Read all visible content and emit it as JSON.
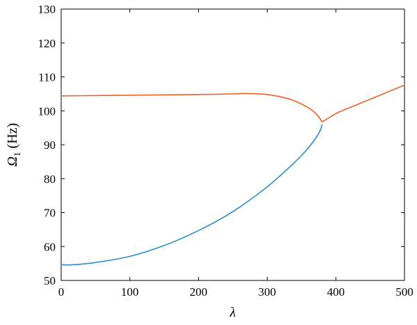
{
  "chart_data": {
    "type": "line",
    "title": "",
    "xlabel": "λ",
    "ylabel_symbol": "Ω",
    "ylabel_subscript": "1",
    "ylabel_unit": " (Hz)",
    "xlim": [
      0,
      500
    ],
    "ylim": [
      50,
      130
    ],
    "xticks": [
      0,
      100,
      200,
      300,
      400,
      500
    ],
    "yticks": [
      50,
      60,
      70,
      80,
      90,
      100,
      110,
      120,
      130
    ],
    "grid": false,
    "legend": "none",
    "series": [
      {
        "color": "#e8622a",
        "x": [
          0,
          50,
          100,
          150,
          200,
          250,
          270,
          300,
          330,
          350,
          365,
          375,
          380,
          382,
          400,
          450,
          500
        ],
        "y": [
          104.4,
          104.5,
          104.6,
          104.7,
          104.8,
          105.0,
          105.1,
          104.8,
          103.6,
          102.0,
          100.2,
          98.3,
          96.8,
          97.0,
          99.2,
          103.4,
          107.6
        ]
      },
      {
        "color": "#2a8ccf",
        "x": [
          0,
          15,
          50,
          100,
          150,
          200,
          250,
          300,
          340,
          360,
          375,
          380
        ],
        "y": [
          54.7,
          54.6,
          55.3,
          57.1,
          60.3,
          64.7,
          70.3,
          77.6,
          84.8,
          89.1,
          93.3,
          95.8
        ]
      }
    ]
  }
}
